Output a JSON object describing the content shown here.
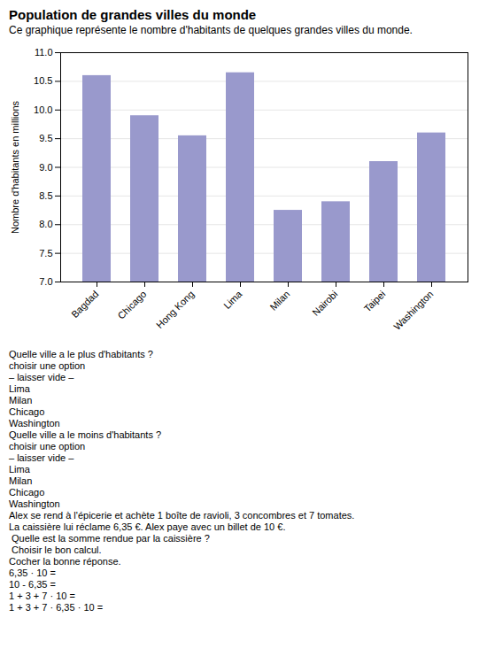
{
  "chart_data": {
    "type": "bar",
    "title": "Population de  grandes villes du monde",
    "subtitle": "Ce graphique représente le nombre d'habitants de quelques grandes villes du monde.",
    "categories": [
      "Bagdad",
      "Chicago",
      "Hong Kong",
      "Lima",
      "Milan",
      "Nairobi",
      "Taipei",
      "Washington"
    ],
    "values": [
      10.6,
      9.9,
      9.55,
      10.65,
      8.25,
      8.4,
      9.1,
      9.6
    ],
    "color": "#9999cc",
    "ylabel": "Nombre d'habitants en millions",
    "ylim": [
      7,
      11
    ],
    "yticks": [
      {
        "value": 7,
        "label": "7.0"
      },
      {
        "value": 7.5,
        "label": "7.5"
      },
      {
        "value": 8,
        "label": "8.0"
      },
      {
        "value": 8.5,
        "label": "8.5"
      },
      {
        "value": 9,
        "label": "9.0"
      },
      {
        "value": 9.5,
        "label": "9.5"
      },
      {
        "value": 10,
        "label": "10.0"
      },
      {
        "value": 10.5,
        "label": "10.5"
      },
      {
        "value": 11,
        "label": "11.0"
      }
    ],
    "grid": true,
    "annotations": [
      "Quelle ville a le plus d'habitants ?",
      "choisir une option",
      "– laisser vide –",
      "Lima",
      "Milan",
      "Chicago",
      "Washington",
      "Quelle ville a le moins d'habitants ?",
      "choisir une option",
      "– laisser vide –",
      "Lima",
      "Milan",
      "Chicago",
      "Washington",
      "Alex se rend à l'épicerie et achète 1 boîte de ravioli, 3 concombres et 7 tomates.",
      "La caissière lui réclame 6,35 €. Alex paye avec un billet de 10 €.",
      " Quelle est la somme rendue par la caissière ?",
      " Choisir le bon calcul.",
      "Cocher la bonne réponse.",
      "6,35 · 10 =",
      "10 - 6,35 =",
      "1 + 3 + 7 · 10 =",
      "1 + 3 + 7 · 6,35 · 10 ="
    ]
  }
}
